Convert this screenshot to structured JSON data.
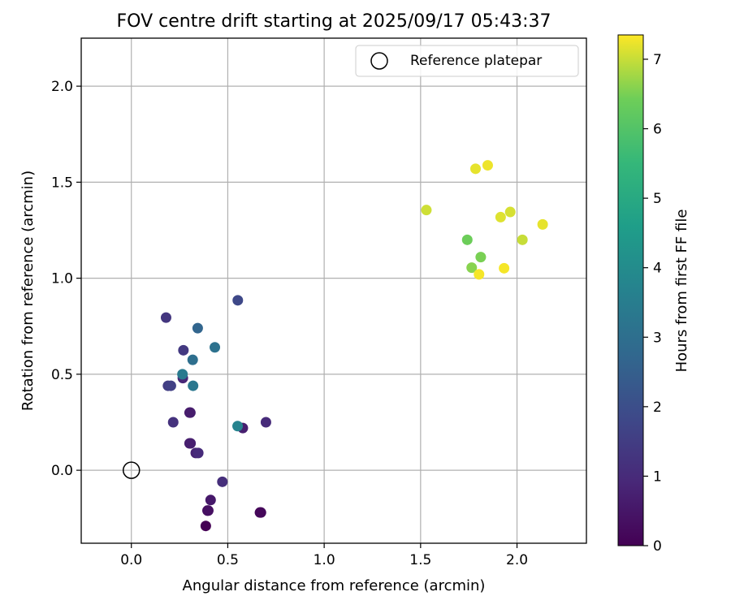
{
  "chart_data": {
    "type": "scatter",
    "title": "FOV centre drift starting at 2025/09/17 05:43:37",
    "xlabel": "Angular distance from reference (arcmin)",
    "ylabel": "Rotation from reference (arcmin)",
    "xlim": [
      -0.26,
      2.36
    ],
    "ylim": [
      -0.38,
      2.25
    ],
    "xticks": [
      0.0,
      0.5,
      1.0,
      1.5,
      2.0
    ],
    "yticks": [
      0.0,
      0.5,
      1.0,
      1.5,
      2.0
    ],
    "grid": true,
    "legend": {
      "position": "top-right",
      "entries": [
        "Reference platepar"
      ]
    },
    "reference_point": {
      "x": 0.0,
      "y": 0.0,
      "label": "Reference platepar"
    },
    "colorbar": {
      "label": "Hours from first FF file",
      "min": 0,
      "max": 7.35,
      "ticks": [
        0,
        1,
        2,
        3,
        4,
        5,
        6,
        7
      ],
      "colormap": "viridis"
    },
    "points": [
      {
        "x": 0.386,
        "y": -0.29,
        "h": 0.0
      },
      {
        "x": 0.667,
        "y": -0.22,
        "h": 0.1
      },
      {
        "x": 0.672,
        "y": -0.22,
        "h": 0.15
      },
      {
        "x": 0.395,
        "y": -0.21,
        "h": 0.3
      },
      {
        "x": 0.399,
        "y": -0.21,
        "h": 0.35
      },
      {
        "x": 0.411,
        "y": -0.155,
        "h": 0.55
      },
      {
        "x": 0.472,
        "y": -0.06,
        "h": 1.1
      },
      {
        "x": 0.302,
        "y": 0.14,
        "h": 0.65
      },
      {
        "x": 0.307,
        "y": 0.14,
        "h": 0.7
      },
      {
        "x": 0.334,
        "y": 0.09,
        "h": 0.8
      },
      {
        "x": 0.347,
        "y": 0.09,
        "h": 1.0
      },
      {
        "x": 0.302,
        "y": 0.3,
        "h": 0.6
      },
      {
        "x": 0.306,
        "y": 0.3,
        "h": 0.65
      },
      {
        "x": 0.578,
        "y": 0.22,
        "h": 0.7
      },
      {
        "x": 0.698,
        "y": 0.25,
        "h": 1.0
      },
      {
        "x": 0.217,
        "y": 0.25,
        "h": 1.2
      },
      {
        "x": 0.267,
        "y": 0.48,
        "h": 0.9
      },
      {
        "x": 0.19,
        "y": 0.44,
        "h": 1.5
      },
      {
        "x": 0.205,
        "y": 0.44,
        "h": 1.6
      },
      {
        "x": 0.27,
        "y": 0.625,
        "h": 1.4
      },
      {
        "x": 0.18,
        "y": 0.795,
        "h": 1.3
      },
      {
        "x": 0.552,
        "y": 0.885,
        "h": 1.8
      },
      {
        "x": 0.265,
        "y": 0.5,
        "h": 3.4
      },
      {
        "x": 0.32,
        "y": 0.44,
        "h": 3.3
      },
      {
        "x": 0.318,
        "y": 0.575,
        "h": 3.0
      },
      {
        "x": 0.344,
        "y": 0.74,
        "h": 2.7
      },
      {
        "x": 0.433,
        "y": 0.64,
        "h": 3.1
      },
      {
        "x": 0.551,
        "y": 0.23,
        "h": 3.7
      },
      {
        "x": 1.53,
        "y": 1.355,
        "h": 7.05
      },
      {
        "x": 1.742,
        "y": 1.2,
        "h": 6.4
      },
      {
        "x": 1.765,
        "y": 1.055,
        "h": 6.6
      },
      {
        "x": 1.785,
        "y": 1.57,
        "h": 7.2
      },
      {
        "x": 1.803,
        "y": 1.02,
        "h": 7.3
      },
      {
        "x": 1.812,
        "y": 1.11,
        "h": 6.5
      },
      {
        "x": 1.848,
        "y": 1.588,
        "h": 7.25
      },
      {
        "x": 1.915,
        "y": 1.318,
        "h": 7.15
      },
      {
        "x": 1.933,
        "y": 1.052,
        "h": 7.3
      },
      {
        "x": 1.965,
        "y": 1.345,
        "h": 7.1
      },
      {
        "x": 2.028,
        "y": 1.2,
        "h": 7.0
      },
      {
        "x": 2.133,
        "y": 1.28,
        "h": 7.2
      }
    ]
  }
}
